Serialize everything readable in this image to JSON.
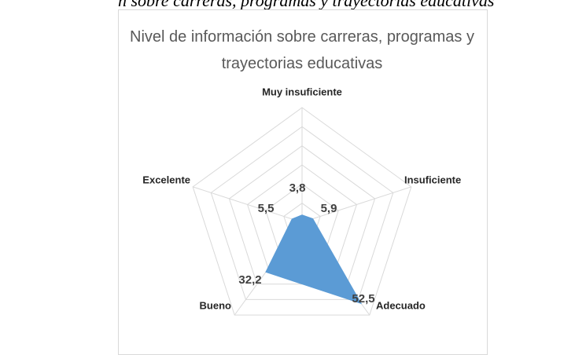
{
  "caption": "n sobre carreras, programas y trayectorias educativas",
  "chart_data": {
    "type": "radar",
    "title": "Nivel de información sobre carreras, programas y trayectorias educativas",
    "categories": [
      "Muy insuficiente",
      "Insuficiente",
      "Adecuado",
      "Bueno",
      "Excelente"
    ],
    "values": [
      3.8,
      5.9,
      52.5,
      32.2,
      5.5
    ],
    "value_labels": [
      "3,8",
      "5,9",
      "52,5",
      "32,2",
      "5,5"
    ],
    "color": "#5b9bd5",
    "ylim": [
      0,
      60
    ],
    "yticks": [
      0,
      10,
      20,
      30,
      40,
      50,
      60
    ],
    "grid": true
  }
}
